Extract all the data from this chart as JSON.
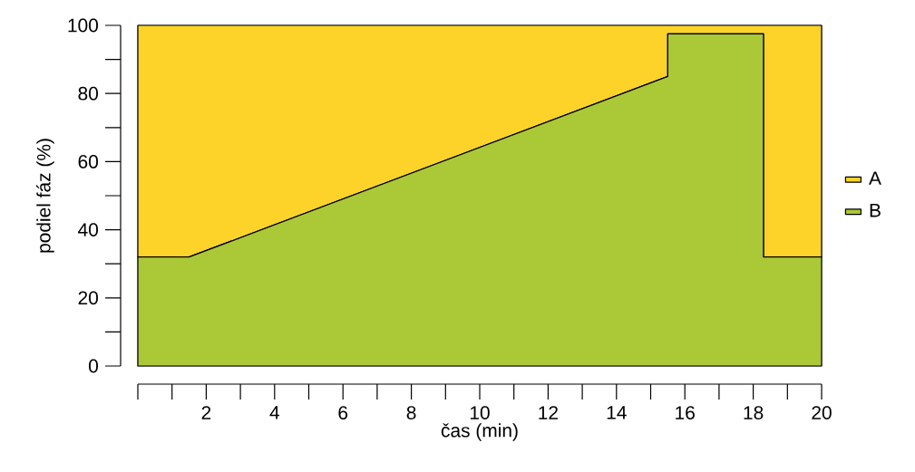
{
  "chart_data": {
    "type": "area",
    "stacked": true,
    "xlabel": "čas (min)",
    "ylabel": "podiel fáz (%)",
    "series": [
      {
        "name": "B",
        "color": "#abc837",
        "x": [
          0,
          1.5,
          15.5,
          15.5,
          18.3,
          18.3,
          20
        ],
        "values": [
          32,
          32,
          85,
          97.5,
          97.5,
          32,
          32
        ]
      },
      {
        "name": "A",
        "color": "#fdd32a",
        "x": [
          0,
          1.5,
          15.5,
          15.5,
          18.3,
          18.3,
          20
        ],
        "values": [
          68,
          68,
          15,
          2.5,
          2.5,
          68,
          68
        ]
      }
    ],
    "xlim": [
      0,
      20
    ],
    "ylim": [
      0,
      100
    ],
    "xticks": [
      2,
      4,
      6,
      8,
      10,
      12,
      14,
      16,
      18,
      20
    ],
    "yticks": [
      0,
      20,
      40,
      60,
      80,
      100
    ],
    "legend": "right"
  }
}
